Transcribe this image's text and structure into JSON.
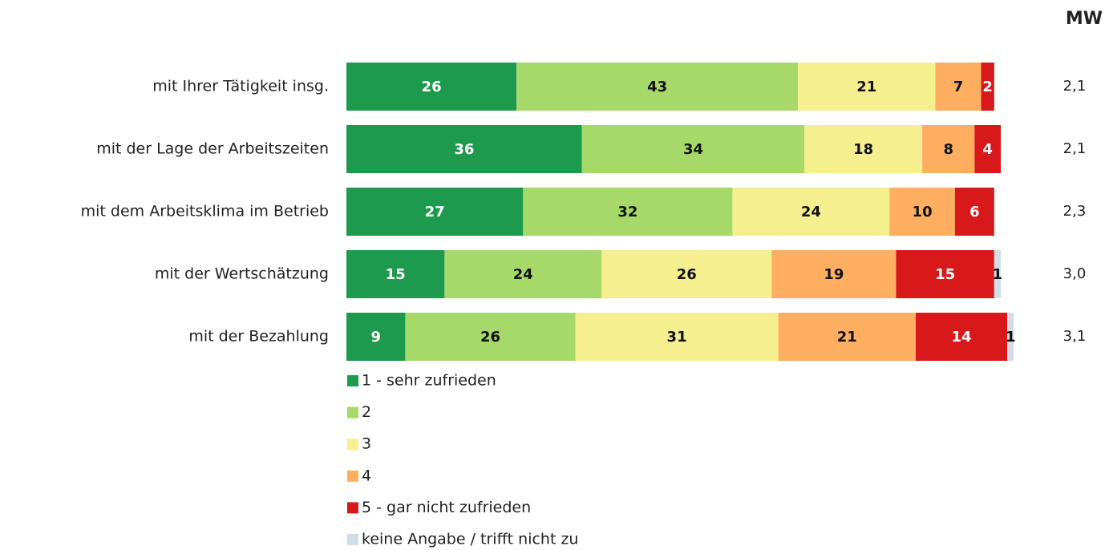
{
  "chart_data": {
    "type": "stacked-bar-horizontal",
    "categories": [
      "mit Ihrer Tätigkeit insg.",
      "mit der Lage der Arbeitszeiten",
      "mit dem Arbeitsklima im Betrieb",
      "mit der Wertschätzung",
      "mit der Bezahlung"
    ],
    "series": [
      {
        "name": "1 - sehr zufrieden",
        "color": "#1e9a4e",
        "values": [
          26,
          36,
          27,
          15,
          9
        ]
      },
      {
        "name": "2",
        "color": "#a6d96a",
        "values": [
          43,
          34,
          32,
          24,
          26
        ]
      },
      {
        "name": "3",
        "color": "#f5ef8f",
        "values": [
          21,
          18,
          24,
          26,
          31
        ]
      },
      {
        "name": "4",
        "color": "#fdae61",
        "values": [
          7,
          8,
          10,
          19,
          21
        ]
      },
      {
        "name": "5 - gar nicht zufrieden",
        "color": "#d7191c",
        "values": [
          2,
          4,
          6,
          15,
          14
        ]
      },
      {
        "name": "keine Angabe / trifft nicht zu",
        "color": "#d3dde8",
        "values": [
          null,
          null,
          null,
          1,
          1
        ]
      }
    ],
    "mw": {
      "title": "MW",
      "values": [
        2.1,
        2.1,
        2.3,
        3.0,
        3.1
      ],
      "value_labels": [
        "2,1",
        "2,1",
        "2,3",
        "3,0",
        "3,1"
      ]
    }
  }
}
